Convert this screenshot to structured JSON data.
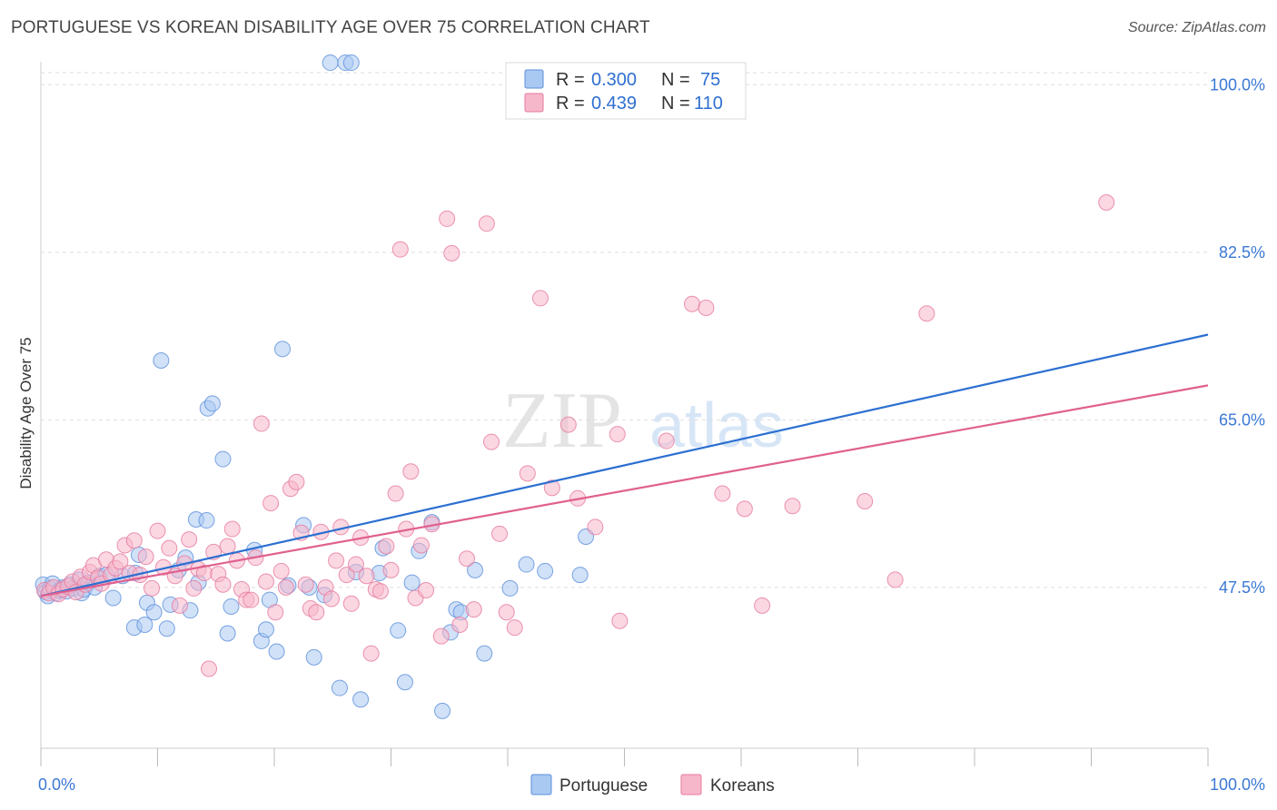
{
  "header": {
    "title": "PORTUGUESE VS KOREAN DISABILITY AGE OVER 75 CORRELATION CHART",
    "source": "Source: ZipAtlas.com"
  },
  "watermark": {
    "zip": "ZIP",
    "atlas": "atlas"
  },
  "legend": {
    "rows": [
      {
        "r_label": "R =",
        "r_value": "0.300",
        "n_label": "N =",
        "n_value": "75",
        "color": "#a9c8f2"
      },
      {
        "r_label": "R =",
        "r_value": "0.439",
        "n_label": "N =",
        "n_value": "110",
        "color": "#f7b7cb"
      }
    ]
  },
  "chart_data": {
    "type": "scatter",
    "title": "PORTUGUESE VS KOREAN DISABILITY AGE OVER 75 CORRELATION CHART",
    "ylabel": "Disability Age Over 75",
    "xlabel": "",
    "xlim": [
      0,
      100
    ],
    "ylim": [
      30.7,
      102.4
    ],
    "x_tick_labels": [
      {
        "value": 0,
        "label": "0.0%"
      },
      {
        "value": 100,
        "label": "100.0%"
      }
    ],
    "y_tick_labels": [
      {
        "value": 100,
        "label": "100.0%"
      },
      {
        "value": 82.5,
        "label": "82.5%"
      },
      {
        "value": 65,
        "label": "65.0%"
      },
      {
        "value": 47.5,
        "label": "47.5%"
      }
    ],
    "grid": "horizontal dashed",
    "legend_position": "top-center",
    "series": [
      {
        "name": "Portuguese",
        "color": "#a9c8f2",
        "stroke": "#5b8fd9",
        "trend_color": "#2b6fd1",
        "trend": {
          "x": [
            0,
            100
          ],
          "y": [
            46.6,
            73.9
          ]
        },
        "points": [
          [
            0.2,
            47.8
          ],
          [
            0.4,
            47.0
          ],
          [
            0.6,
            46.6
          ],
          [
            0.8,
            47.4
          ],
          [
            1.0,
            47.9
          ],
          [
            1.3,
            46.9
          ],
          [
            1.6,
            47.2
          ],
          [
            1.9,
            47.5
          ],
          [
            2.2,
            47.1
          ],
          [
            2.5,
            47.8
          ],
          [
            2.8,
            47.4
          ],
          [
            3.3,
            48.3
          ],
          [
            3.5,
            46.9
          ],
          [
            3.7,
            47.3
          ],
          [
            4.1,
            48.0
          ],
          [
            4.6,
            47.5
          ],
          [
            5.0,
            48.7
          ],
          [
            5.6,
            48.8
          ],
          [
            6.2,
            46.4
          ],
          [
            7.0,
            48.7
          ],
          [
            8.0,
            43.3
          ],
          [
            8.1,
            49.0
          ],
          [
            8.4,
            50.9
          ],
          [
            8.9,
            43.6
          ],
          [
            9.1,
            45.9
          ],
          [
            9.7,
            44.9
          ],
          [
            10.3,
            71.2
          ],
          [
            10.8,
            43.2
          ],
          [
            11.1,
            45.7
          ],
          [
            11.8,
            49.3
          ],
          [
            12.4,
            50.6
          ],
          [
            12.8,
            45.1
          ],
          [
            13.3,
            54.6
          ],
          [
            13.5,
            48.0
          ],
          [
            14.2,
            54.5
          ],
          [
            14.3,
            66.2
          ],
          [
            14.7,
            66.7
          ],
          [
            15.6,
            60.9
          ],
          [
            16.0,
            42.7
          ],
          [
            16.3,
            45.5
          ],
          [
            18.3,
            51.4
          ],
          [
            18.9,
            41.9
          ],
          [
            19.3,
            43.1
          ],
          [
            19.6,
            46.2
          ],
          [
            20.2,
            40.8
          ],
          [
            20.7,
            72.4
          ],
          [
            21.2,
            47.7
          ],
          [
            22.5,
            54.0
          ],
          [
            23.0,
            47.5
          ],
          [
            23.4,
            40.2
          ],
          [
            24.3,
            46.7
          ],
          [
            24.8,
            102.3
          ],
          [
            25.6,
            37.0
          ],
          [
            26.1,
            102.3
          ],
          [
            26.6,
            102.3
          ],
          [
            27.0,
            49.1
          ],
          [
            27.4,
            35.8
          ],
          [
            29.0,
            49.0
          ],
          [
            29.3,
            51.6
          ],
          [
            30.6,
            43.0
          ],
          [
            31.2,
            37.6
          ],
          [
            31.8,
            48.0
          ],
          [
            32.4,
            51.3
          ],
          [
            33.5,
            54.3
          ],
          [
            34.4,
            34.6
          ],
          [
            35.1,
            42.8
          ],
          [
            35.6,
            45.2
          ],
          [
            36.0,
            44.9
          ],
          [
            37.2,
            49.3
          ],
          [
            38.0,
            40.6
          ],
          [
            40.2,
            47.4
          ],
          [
            41.6,
            49.9
          ],
          [
            43.2,
            49.2
          ],
          [
            46.2,
            48.8
          ],
          [
            46.7,
            52.8
          ]
        ]
      },
      {
        "name": "Koreans",
        "color": "#f7b7cb",
        "stroke": "#e6799d",
        "trend_color": "#e0608e",
        "trend": {
          "x": [
            0,
            100
          ],
          "y": [
            46.6,
            68.6
          ]
        },
        "points": [
          [
            0.3,
            47.2
          ],
          [
            0.7,
            46.9
          ],
          [
            1.1,
            47.5
          ],
          [
            1.5,
            46.8
          ],
          [
            1.9,
            47.3
          ],
          [
            2.3,
            47.6
          ],
          [
            2.7,
            48.1
          ],
          [
            3.0,
            47.0
          ],
          [
            3.4,
            48.6
          ],
          [
            3.8,
            47.8
          ],
          [
            4.2,
            49.1
          ],
          [
            4.5,
            49.8
          ],
          [
            4.9,
            48.5
          ],
          [
            5.2,
            47.9
          ],
          [
            5.6,
            50.4
          ],
          [
            6.0,
            48.8
          ],
          [
            6.4,
            49.5
          ],
          [
            6.8,
            50.2
          ],
          [
            7.2,
            51.9
          ],
          [
            7.6,
            49.0
          ],
          [
            8.0,
            52.4
          ],
          [
            8.5,
            48.8
          ],
          [
            9.0,
            50.7
          ],
          [
            9.5,
            47.4
          ],
          [
            10.0,
            53.4
          ],
          [
            10.5,
            49.6
          ],
          [
            11.0,
            51.6
          ],
          [
            11.5,
            48.7
          ],
          [
            11.9,
            45.6
          ],
          [
            12.3,
            50.0
          ],
          [
            12.7,
            52.5
          ],
          [
            13.1,
            47.4
          ],
          [
            13.5,
            49.4
          ],
          [
            14.0,
            49.0
          ],
          [
            14.4,
            39.0
          ],
          [
            14.8,
            51.2
          ],
          [
            15.2,
            48.9
          ],
          [
            15.6,
            47.8
          ],
          [
            16.0,
            51.8
          ],
          [
            16.4,
            53.6
          ],
          [
            16.8,
            50.3
          ],
          [
            17.2,
            47.3
          ],
          [
            17.6,
            46.2
          ],
          [
            18.0,
            46.2
          ],
          [
            18.4,
            50.6
          ],
          [
            18.9,
            64.6
          ],
          [
            19.3,
            48.1
          ],
          [
            19.7,
            56.3
          ],
          [
            20.1,
            44.9
          ],
          [
            20.6,
            49.2
          ],
          [
            21.0,
            47.5
          ],
          [
            21.4,
            57.8
          ],
          [
            21.9,
            58.5
          ],
          [
            22.3,
            53.2
          ],
          [
            22.7,
            47.8
          ],
          [
            23.1,
            45.3
          ],
          [
            23.6,
            44.9
          ],
          [
            24.0,
            53.3
          ],
          [
            24.4,
            47.5
          ],
          [
            24.9,
            46.3
          ],
          [
            25.3,
            50.3
          ],
          [
            25.7,
            53.8
          ],
          [
            26.2,
            48.8
          ],
          [
            26.6,
            45.8
          ],
          [
            27.0,
            49.9
          ],
          [
            27.4,
            52.7
          ],
          [
            27.9,
            48.7
          ],
          [
            28.3,
            40.6
          ],
          [
            28.7,
            47.3
          ],
          [
            29.1,
            47.1
          ],
          [
            29.6,
            51.8
          ],
          [
            30.0,
            49.3
          ],
          [
            30.4,
            57.3
          ],
          [
            30.8,
            82.8
          ],
          [
            31.3,
            53.6
          ],
          [
            31.7,
            59.6
          ],
          [
            32.1,
            46.4
          ],
          [
            32.6,
            51.9
          ],
          [
            33.0,
            47.2
          ],
          [
            33.5,
            54.1
          ],
          [
            34.3,
            42.4
          ],
          [
            34.8,
            86.0
          ],
          [
            35.2,
            82.4
          ],
          [
            35.9,
            43.6
          ],
          [
            36.5,
            50.5
          ],
          [
            37.1,
            45.2
          ],
          [
            38.2,
            85.5
          ],
          [
            38.6,
            62.7
          ],
          [
            39.3,
            53.1
          ],
          [
            39.9,
            44.9
          ],
          [
            40.6,
            43.3
          ],
          [
            41.7,
            59.4
          ],
          [
            42.8,
            77.7
          ],
          [
            43.8,
            57.9
          ],
          [
            45.2,
            64.5
          ],
          [
            46.0,
            56.8
          ],
          [
            47.5,
            53.8
          ],
          [
            49.4,
            63.5
          ],
          [
            49.6,
            44.0
          ],
          [
            53.6,
            62.8
          ],
          [
            55.8,
            77.1
          ],
          [
            57.0,
            76.7
          ],
          [
            58.4,
            57.3
          ],
          [
            60.3,
            55.7
          ],
          [
            61.8,
            45.6
          ],
          [
            64.4,
            56.0
          ],
          [
            70.6,
            56.5
          ],
          [
            73.2,
            48.3
          ],
          [
            75.9,
            76.1
          ],
          [
            91.3,
            87.7
          ]
        ]
      }
    ]
  },
  "bottom_legend": {
    "items": [
      {
        "label": "Portuguese",
        "color": "#a9c8f2"
      },
      {
        "label": "Koreans",
        "color": "#f7b7cb"
      }
    ]
  }
}
